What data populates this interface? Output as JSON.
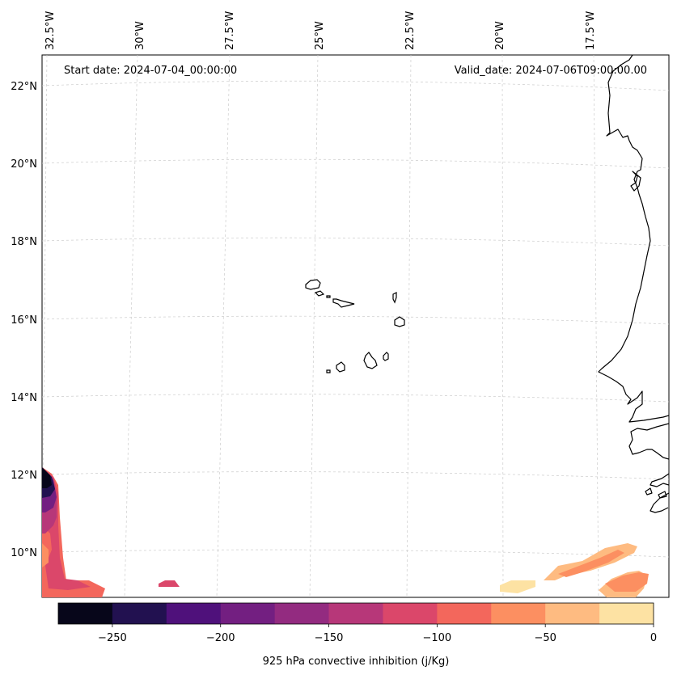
{
  "map": {
    "start_date": "Start date: 2024-07-04_00:00:00",
    "valid_date": "Valid_date: 2024-07-06T09:00:00.00",
    "lon_labels": [
      "32.5°W",
      "30°W",
      "27.5°W",
      "25°W",
      "22.5°W",
      "20°W",
      "17.5°W"
    ],
    "lat_labels": [
      "22°N",
      "20°N",
      "18°N",
      "16°N",
      "14°N",
      "12°N",
      "10°N"
    ]
  },
  "colorbar": {
    "title": "925 hPa convective inhibition (j/Kg)",
    "tick_labels": [
      "−250",
      "−200",
      "−150",
      "−100",
      "−50",
      "0"
    ],
    "ticks": [
      -250,
      -200,
      -150,
      -100,
      -50,
      0
    ],
    "min": -275,
    "max": 0,
    "levels": [
      {
        "from": -275,
        "to": -250,
        "color": "#07061a"
      },
      {
        "from": -250,
        "to": -225,
        "color": "#221150"
      },
      {
        "from": -225,
        "to": -200,
        "color": "#4f117b"
      },
      {
        "from": -200,
        "to": -175,
        "color": "#731f81"
      },
      {
        "from": -175,
        "to": -150,
        "color": "#932b80"
      },
      {
        "from": -150,
        "to": -125,
        "color": "#b73779"
      },
      {
        "from": -125,
        "to": -100,
        "color": "#db476a"
      },
      {
        "from": -100,
        "to": -75,
        "color": "#f3675c"
      },
      {
        "from": -75,
        "to": -50,
        "color": "#fc8f61"
      },
      {
        "from": -50,
        "to": -25,
        "color": "#febb81"
      },
      {
        "from": -25,
        "to": 0,
        "color": "#fde2a3"
      }
    ]
  }
}
